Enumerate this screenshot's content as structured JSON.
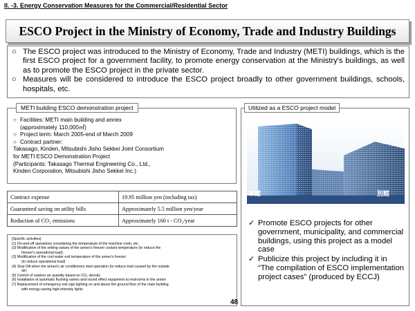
{
  "section_heading": "II. -3. Energy Conservation Measures for the Commercial/Residential Sector",
  "title": "ESCO Project in the Ministry of Economy, Trade and Industry Buildings",
  "intro": [
    "The ESCO project was introduced to the Ministry of Economy, Trade and Industry (METI) buildings, which is the first ESCO project for a government facility, to promote energy conservation at the Ministry's buildings, as well as to promote the ESCO project in the private sector.",
    "Measures will be considered to introduce the ESCO project broadly to other government buildings, schools, hospitals, etc."
  ],
  "demo": {
    "tab_label": "METI building ESCO demonstration project",
    "facilities": "Facilities: METI main building and annex",
    "facilities_detail": "(approximately 110,000㎡)",
    "project_term": "Project term: March 2005-end of March 2009",
    "contract_partner": "Contract partner:",
    "partner_line1": "Takasago, Kinden, Mitsubishi Jisho Sekkei Joint Consortium",
    "partner_line2": "for METI ESCO  Demonstration Project",
    "partner_line3": "(Participants: Takasago Thermal Engineering Co., Ltd.,",
    "partner_line4": "Kinden Corporation, Mitsubishi Jisho Sekkei Inc.)"
  },
  "table": {
    "rows": [
      {
        "label": "Contract expense",
        "value": "19.95 million yen (including tax)"
      },
      {
        "label": "Guaranteed saving on utility bills",
        "value": "Approximately 5.5 million yen/year"
      },
      {
        "label": "Reduction of CO₂ emissions",
        "value": "Approximately 160 t - CO₂/year"
      }
    ]
  },
  "activities": {
    "header": "[Specific activities]",
    "items": [
      "(1)  On-and-off operations considering the temperature of the machine room, etc.",
      "(2)  Modification of the setting values of the annex's freezer coolant temperature (to reduce the",
      "freezer's operational load)",
      "(3)  Modification of the cool water exit temperature of the annex's freezer",
      "(to reduce operational load)",
      "(4)  Stop OA  when the annex's air conditioners start operation (to reduce load caused by the outside",
      "air)",
      "(5) Control of outdoor air quantity based on CO₂ density",
      "(6)  Installation of automatic flushing valves and sound effect equipment at restrooms in the annex",
      "(7)  Replacement of  emergency exit sign lighting on and above the ground floor of the main building",
      "with energy-saving high-intensity lights"
    ]
  },
  "model": {
    "tab_label": "Utilized as a ESCO project model",
    "photo_label_main": "本館",
    "photo_label_annex": "別館",
    "items": [
      "Promote ESCO projects for other government, municipality, and commercial buildings, using this project as a model case",
      "Publicize this project by including it in “The compilation of ESCO implementation project cases” (produced by ECCJ)"
    ]
  },
  "page_number": "48",
  "icons": {
    "bullet": "circle-bullet-icon",
    "check": "check-mark-icon"
  },
  "colors": {
    "sky": "#6fa8d8",
    "building_main": "#5b89c4",
    "building_annex": "#3f5f8f"
  }
}
